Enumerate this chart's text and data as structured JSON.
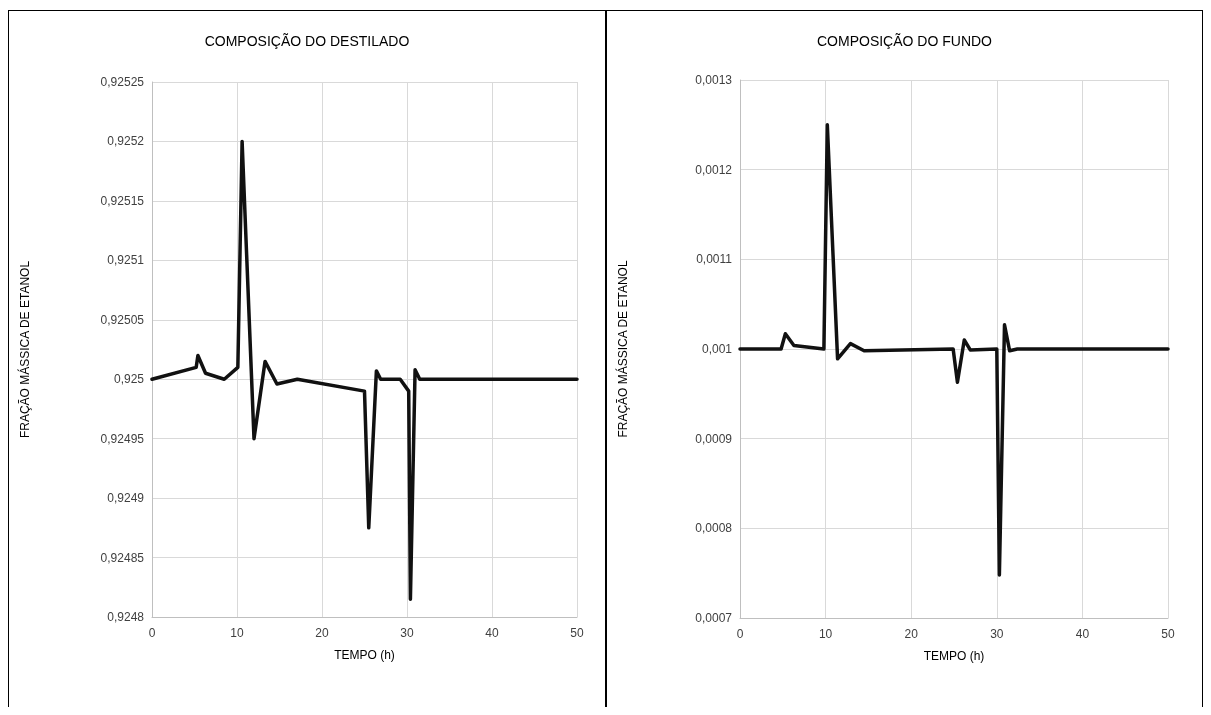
{
  "chart_data": [
    {
      "type": "line",
      "title": "COMPOSIÇÃO DO DESTILADO",
      "xlabel": "TEMPO (h)",
      "ylabel": "FRAÇÃO MÁSSICA DE ETANOL",
      "grid": true,
      "marker": "none",
      "line_style": "solid",
      "xlim": [
        0,
        50
      ],
      "xticks": [
        0,
        10,
        20,
        30,
        40,
        50
      ],
      "ylim": [
        0.9248,
        0.92525
      ],
      "yticks": [
        {
          "value": 0.9248,
          "label": "0,9248"
        },
        {
          "value": 0.92485,
          "label": "0,92485"
        },
        {
          "value": 0.9249,
          "label": "0,9249"
        },
        {
          "value": 0.92495,
          "label": "0,92495"
        },
        {
          "value": 0.925,
          "label": "0,925"
        },
        {
          "value": 0.92505,
          "label": "0,92505"
        },
        {
          "value": 0.9251,
          "label": "0,9251"
        },
        {
          "value": 0.92515,
          "label": "0,92515"
        },
        {
          "value": 0.9252,
          "label": "0,9252"
        },
        {
          "value": 0.92525,
          "label": "0,92525"
        }
      ],
      "series": [
        {
          "color": "#111111",
          "x": [
            0,
            5.2,
            5.4,
            6.3,
            8.5,
            10.1,
            10.6,
            12.0,
            13.3,
            14.7,
            17.1,
            25.0,
            25.5,
            26.4,
            26.9,
            29.2,
            30.2,
            30.4,
            30.95,
            31.5,
            50
          ],
          "values": [
            0.925,
            0.92501,
            0.92502,
            0.925005,
            0.925,
            0.92501,
            0.9252,
            0.92495,
            0.925015,
            0.924996,
            0.925,
            0.92499,
            0.924875,
            0.925007,
            0.925,
            0.925,
            0.92499,
            0.924815,
            0.925008,
            0.925,
            0.925
          ]
        }
      ]
    },
    {
      "type": "line",
      "title": "COMPOSIÇÃO DO FUNDO",
      "xlabel": "TEMPO (h)",
      "ylabel": "FRAÇÃO MÁSSICA DE ETANOL",
      "grid": true,
      "marker": "none",
      "line_style": "solid",
      "xlim": [
        0,
        50
      ],
      "xticks": [
        0,
        10,
        20,
        30,
        40,
        50
      ],
      "ylim": [
        0.0007,
        0.0013
      ],
      "yticks": [
        {
          "value": 0.0007,
          "label": "0,0007"
        },
        {
          "value": 0.0008,
          "label": "0,0008"
        },
        {
          "value": 0.0009,
          "label": "0,0009"
        },
        {
          "value": 0.001,
          "label": "0,001"
        },
        {
          "value": 0.0011,
          "label": "0,0011"
        },
        {
          "value": 0.0012,
          "label": "0,0012"
        },
        {
          "value": 0.0013,
          "label": "0,0013"
        }
      ],
      "series": [
        {
          "color": "#111111",
          "x": [
            0,
            4.8,
            5.3,
            6.3,
            9.8,
            10.2,
            11.4,
            12.9,
            14.5,
            24.9,
            25.4,
            26.2,
            26.9,
            30.0,
            30.3,
            30.9,
            31.5,
            32.4,
            50
          ],
          "values": [
            0.001,
            0.001,
            0.001017,
            0.001004,
            0.001,
            0.00125,
            0.000989,
            0.001006,
            0.000998,
            0.001,
            0.000963,
            0.00101,
            0.000999,
            0.001,
            0.000748,
            0.001027,
            0.000998,
            0.001,
            0.001
          ]
        }
      ]
    }
  ]
}
